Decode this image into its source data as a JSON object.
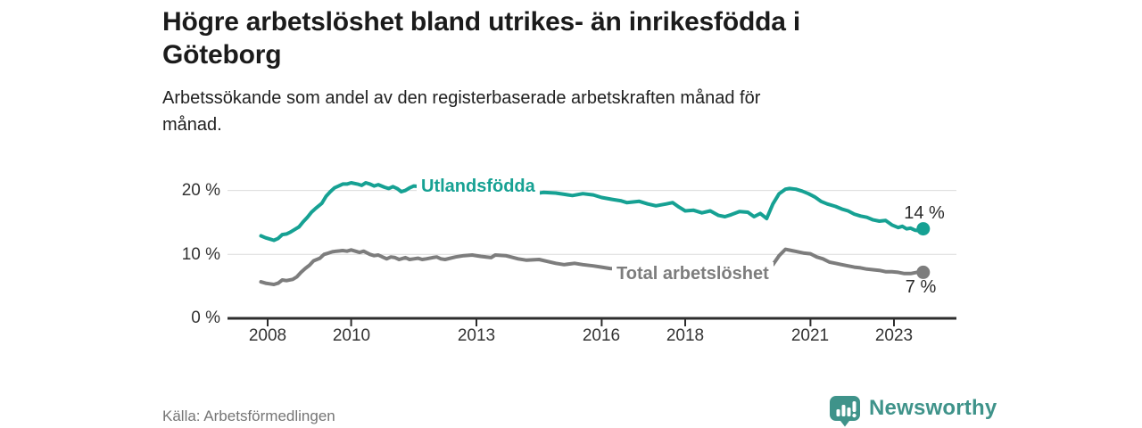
{
  "header": {
    "title_line1": "Högre arbetslöshet bland utrikes- än inrikesfödda i",
    "title_line2": "Göteborg",
    "subtitle_line1": "Arbetssökande som andel av den registerbaserade arbetskraften månad för",
    "subtitle_line2": "månad."
  },
  "footer": {
    "source": "Källa: Arbetsförmedlingen",
    "brand_name": "Newsworthy"
  },
  "colors": {
    "accent_teal": "#16a193",
    "neutral_gray": "#7d7d7d",
    "axis": "#2d2d2d",
    "grid": "#dcdcdc",
    "brand_teal": "#3f938a"
  },
  "chart_data": {
    "type": "line",
    "title": "Högre arbetslöshet bland utrikes- än inrikesfödda i Göteborg",
    "subtitle": "Arbetssökande som andel av den registerbaserade arbetskraften månad för månad.",
    "xlabel": "",
    "ylabel": "",
    "grid": "horizontal",
    "legend_position": "inline-labels-on-line",
    "xlim": [
      2007.0,
      2024.5
    ],
    "ylim": [
      0,
      22
    ],
    "y_ticks": [
      0,
      10,
      20
    ],
    "y_tick_labels": [
      "0 %",
      "10 %",
      "20 %"
    ],
    "x_ticks": [
      2008,
      2010,
      2013,
      2016,
      2018,
      2021,
      2023
    ],
    "x_tick_labels": [
      "2008",
      "2010",
      "2013",
      "2016",
      "2018",
      "2021",
      "2023"
    ],
    "series": [
      {
        "name": "Utlandsfödda",
        "color": "#16a193",
        "end_label": "14 %",
        "end_point": {
          "x": 2023.7,
          "y": 14.0
        },
        "points": [
          [
            2007.84,
            12.9
          ],
          [
            2007.95,
            12.6
          ],
          [
            2008.05,
            12.4
          ],
          [
            2008.15,
            12.2
          ],
          [
            2008.25,
            12.5
          ],
          [
            2008.35,
            13.1
          ],
          [
            2008.45,
            13.2
          ],
          [
            2008.55,
            13.5
          ],
          [
            2008.65,
            13.9
          ],
          [
            2008.75,
            14.3
          ],
          [
            2008.85,
            15.1
          ],
          [
            2008.95,
            15.8
          ],
          [
            2009.05,
            16.6
          ],
          [
            2009.15,
            17.2
          ],
          [
            2009.3,
            18.0
          ],
          [
            2009.4,
            19.1
          ],
          [
            2009.5,
            19.8
          ],
          [
            2009.6,
            20.4
          ],
          [
            2009.7,
            20.7
          ],
          [
            2009.8,
            21.0
          ],
          [
            2009.9,
            21.0
          ],
          [
            2010.0,
            21.2
          ],
          [
            2010.15,
            21.0
          ],
          [
            2010.25,
            20.8
          ],
          [
            2010.35,
            21.2
          ],
          [
            2010.45,
            21.0
          ],
          [
            2010.55,
            20.7
          ],
          [
            2010.65,
            20.9
          ],
          [
            2010.8,
            20.5
          ],
          [
            2010.9,
            20.3
          ],
          [
            2011.0,
            20.6
          ],
          [
            2011.1,
            20.3
          ],
          [
            2011.2,
            19.8
          ],
          [
            2011.3,
            20.0
          ],
          [
            2011.4,
            20.4
          ],
          [
            2011.5,
            20.7
          ],
          [
            2011.65,
            20.6
          ],
          [
            2011.8,
            20.3
          ],
          [
            2012.0,
            20.6
          ],
          [
            2012.2,
            20.4
          ],
          [
            2012.4,
            20.2
          ],
          [
            2012.6,
            20.4
          ],
          [
            2012.8,
            20.1
          ],
          [
            2013.0,
            20.0
          ],
          [
            2013.2,
            20.1
          ],
          [
            2013.4,
            19.9
          ],
          [
            2013.6,
            19.8
          ],
          [
            2013.8,
            19.9
          ],
          [
            2014.0,
            19.8
          ],
          [
            2014.2,
            19.6
          ],
          [
            2014.4,
            19.5
          ],
          [
            2014.6,
            19.7
          ],
          [
            2014.9,
            19.6
          ],
          [
            2015.1,
            19.4
          ],
          [
            2015.3,
            19.2
          ],
          [
            2015.55,
            19.5
          ],
          [
            2015.8,
            19.3
          ],
          [
            2016.0,
            18.9
          ],
          [
            2016.25,
            18.6
          ],
          [
            2016.45,
            18.4
          ],
          [
            2016.6,
            18.1
          ],
          [
            2016.9,
            18.3
          ],
          [
            2017.1,
            17.9
          ],
          [
            2017.3,
            17.6
          ],
          [
            2017.55,
            17.9
          ],
          [
            2017.7,
            18.1
          ],
          [
            2017.85,
            17.4
          ],
          [
            2018.0,
            16.8
          ],
          [
            2018.2,
            16.9
          ],
          [
            2018.4,
            16.5
          ],
          [
            2018.6,
            16.8
          ],
          [
            2018.8,
            16.1
          ],
          [
            2018.95,
            15.9
          ],
          [
            2019.1,
            16.2
          ],
          [
            2019.3,
            16.7
          ],
          [
            2019.5,
            16.6
          ],
          [
            2019.65,
            15.9
          ],
          [
            2019.8,
            16.4
          ],
          [
            2019.95,
            15.6
          ],
          [
            2020.1,
            17.9
          ],
          [
            2020.25,
            19.5
          ],
          [
            2020.4,
            20.2
          ],
          [
            2020.5,
            20.3
          ],
          [
            2020.65,
            20.2
          ],
          [
            2020.8,
            19.9
          ],
          [
            2020.95,
            19.5
          ],
          [
            2021.1,
            19.0
          ],
          [
            2021.25,
            18.3
          ],
          [
            2021.4,
            17.9
          ],
          [
            2021.6,
            17.5
          ],
          [
            2021.75,
            17.1
          ],
          [
            2021.9,
            16.8
          ],
          [
            2022.05,
            16.3
          ],
          [
            2022.2,
            16.0
          ],
          [
            2022.35,
            15.8
          ],
          [
            2022.5,
            15.4
          ],
          [
            2022.65,
            15.2
          ],
          [
            2022.8,
            15.3
          ],
          [
            2022.95,
            14.6
          ],
          [
            2023.1,
            14.2
          ],
          [
            2023.2,
            14.4
          ],
          [
            2023.3,
            14.0
          ],
          [
            2023.4,
            14.1
          ],
          [
            2023.5,
            13.8
          ],
          [
            2023.6,
            13.7
          ],
          [
            2023.7,
            14.0
          ]
        ]
      },
      {
        "name": "Total arbetslöshet",
        "color": "#7d7d7d",
        "end_label": "7 %",
        "end_point": {
          "x": 2023.7,
          "y": 7.2
        },
        "points": [
          [
            2007.84,
            5.7
          ],
          [
            2007.95,
            5.5
          ],
          [
            2008.05,
            5.4
          ],
          [
            2008.15,
            5.3
          ],
          [
            2008.25,
            5.5
          ],
          [
            2008.35,
            6.0
          ],
          [
            2008.45,
            5.9
          ],
          [
            2008.6,
            6.1
          ],
          [
            2008.7,
            6.5
          ],
          [
            2008.8,
            7.2
          ],
          [
            2008.9,
            7.8
          ],
          [
            2009.0,
            8.3
          ],
          [
            2009.1,
            9.0
          ],
          [
            2009.25,
            9.4
          ],
          [
            2009.35,
            10.0
          ],
          [
            2009.45,
            10.2
          ],
          [
            2009.55,
            10.4
          ],
          [
            2009.65,
            10.5
          ],
          [
            2009.8,
            10.6
          ],
          [
            2009.9,
            10.5
          ],
          [
            2010.0,
            10.7
          ],
          [
            2010.1,
            10.5
          ],
          [
            2010.2,
            10.3
          ],
          [
            2010.3,
            10.5
          ],
          [
            2010.45,
            10.0
          ],
          [
            2010.55,
            9.8
          ],
          [
            2010.65,
            9.9
          ],
          [
            2010.75,
            9.6
          ],
          [
            2010.85,
            9.3
          ],
          [
            2010.95,
            9.6
          ],
          [
            2011.05,
            9.5
          ],
          [
            2011.15,
            9.2
          ],
          [
            2011.3,
            9.5
          ],
          [
            2011.4,
            9.2
          ],
          [
            2011.5,
            9.3
          ],
          [
            2011.6,
            9.4
          ],
          [
            2011.7,
            9.2
          ],
          [
            2011.8,
            9.3
          ],
          [
            2011.95,
            9.5
          ],
          [
            2012.05,
            9.6
          ],
          [
            2012.15,
            9.3
          ],
          [
            2012.25,
            9.2
          ],
          [
            2012.5,
            9.6
          ],
          [
            2012.7,
            9.8
          ],
          [
            2012.9,
            9.9
          ],
          [
            2013.1,
            9.7
          ],
          [
            2013.35,
            9.5
          ],
          [
            2013.45,
            9.9
          ],
          [
            2013.7,
            9.8
          ],
          [
            2014.0,
            9.3
          ],
          [
            2014.2,
            9.1
          ],
          [
            2014.5,
            9.2
          ],
          [
            2014.7,
            8.9
          ],
          [
            2014.9,
            8.6
          ],
          [
            2015.1,
            8.4
          ],
          [
            2015.35,
            8.6
          ],
          [
            2015.55,
            8.4
          ],
          [
            2015.8,
            8.2
          ],
          [
            2016.0,
            8.0
          ],
          [
            2016.2,
            7.8
          ],
          [
            2016.5,
            7.7
          ],
          [
            2016.8,
            7.6
          ],
          [
            2017.1,
            7.6
          ],
          [
            2017.4,
            7.5
          ],
          [
            2017.7,
            7.4
          ],
          [
            2018.0,
            7.3
          ],
          [
            2018.3,
            7.2
          ],
          [
            2018.6,
            7.2
          ],
          [
            2018.9,
            7.3
          ],
          [
            2019.2,
            7.4
          ],
          [
            2019.5,
            7.6
          ],
          [
            2019.8,
            7.8
          ],
          [
            2019.95,
            8.1
          ],
          [
            2020.1,
            8.4
          ],
          [
            2020.25,
            9.8
          ],
          [
            2020.4,
            10.8
          ],
          [
            2020.55,
            10.6
          ],
          [
            2020.7,
            10.4
          ],
          [
            2020.85,
            10.2
          ],
          [
            2021.0,
            10.1
          ],
          [
            2021.15,
            9.6
          ],
          [
            2021.3,
            9.3
          ],
          [
            2021.45,
            8.8
          ],
          [
            2021.6,
            8.6
          ],
          [
            2021.75,
            8.4
          ],
          [
            2021.9,
            8.2
          ],
          [
            2022.05,
            8.0
          ],
          [
            2022.2,
            7.9
          ],
          [
            2022.35,
            7.7
          ],
          [
            2022.5,
            7.6
          ],
          [
            2022.65,
            7.5
          ],
          [
            2022.8,
            7.3
          ],
          [
            2022.95,
            7.3
          ],
          [
            2023.1,
            7.2
          ],
          [
            2023.25,
            7.0
          ],
          [
            2023.4,
            7.0
          ],
          [
            2023.55,
            7.2
          ],
          [
            2023.7,
            7.2
          ]
        ]
      }
    ]
  }
}
